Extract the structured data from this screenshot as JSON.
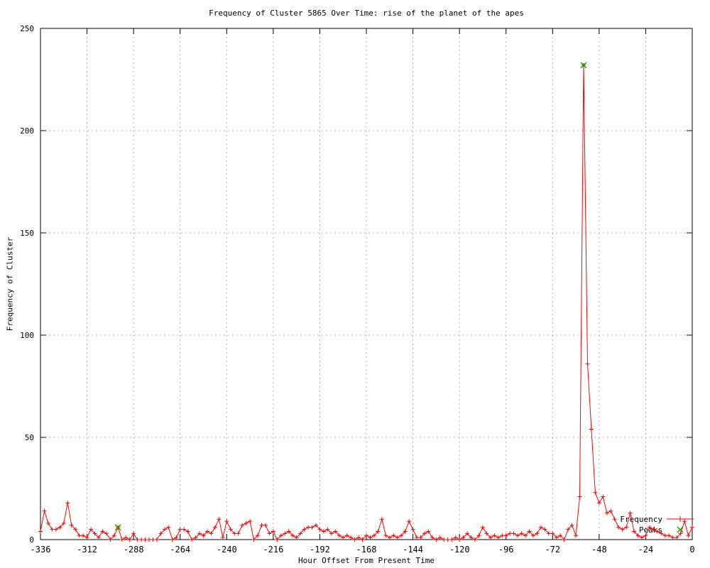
{
  "chart_data": {
    "type": "line",
    "title": "Frequency of Cluster 5865 Over Time: rise of the planet of the apes",
    "xlabel": "Hour Offset From Present Time",
    "ylabel": "Frequency of Cluster",
    "xlim": [
      -336,
      0
    ],
    "ylim": [
      0,
      250
    ],
    "xticks": [
      -336,
      -312,
      -288,
      -264,
      -240,
      -216,
      -192,
      -168,
      -144,
      -120,
      -96,
      -72,
      -48,
      -24,
      0
    ],
    "yticks": [
      0,
      50,
      100,
      150,
      200,
      250
    ],
    "grid": true,
    "legend_position": "bottom-right",
    "background_color": "#ffffff",
    "grid_color": "#b3b3b3",
    "border_color": "#000000",
    "series": [
      {
        "name": "Frequency",
        "color": "#ff0000",
        "marker": "plus",
        "x_start": -336,
        "x_step": 2,
        "values": [
          4,
          14,
          8,
          5,
          5,
          6,
          8,
          18,
          7,
          5,
          2,
          2,
          1,
          5,
          3,
          1,
          4,
          3,
          0,
          2,
          6,
          0,
          1,
          0,
          3,
          0,
          0,
          0,
          0,
          0,
          0,
          3,
          5,
          6,
          0,
          1,
          5,
          5,
          4,
          0,
          1,
          3,
          2,
          4,
          3,
          6,
          10,
          1,
          9,
          5,
          3,
          3,
          7,
          8,
          9,
          0,
          2,
          7,
          7,
          3,
          4,
          0,
          2,
          3,
          4,
          2,
          1,
          3,
          5,
          6,
          6,
          7,
          5,
          4,
          5,
          3,
          4,
          2,
          1,
          2,
          1,
          0,
          1,
          0,
          2,
          1,
          2,
          4,
          10,
          2,
          1,
          2,
          1,
          2,
          4,
          9,
          5,
          1,
          1,
          3,
          4,
          1,
          0,
          1,
          0,
          0,
          0,
          1,
          0,
          1,
          3,
          1,
          0,
          2,
          6,
          3,
          1,
          2,
          1,
          2,
          2,
          3,
          3,
          2,
          3,
          2,
          4,
          2,
          3,
          6,
          5,
          3,
          3,
          1,
          2,
          0,
          5,
          7,
          2,
          21,
          232,
          86,
          54,
          23,
          18,
          21,
          13,
          14,
          10,
          6,
          5,
          6,
          13,
          4,
          2,
          1,
          2,
          6,
          5,
          4,
          3,
          2,
          2,
          1,
          1,
          3,
          9,
          2,
          6
        ]
      },
      {
        "name": "Peaks",
        "color": "#00aa00",
        "marker": "x",
        "points": [
          {
            "x": -296,
            "y": 6
          },
          {
            "x": -56,
            "y": 232
          }
        ]
      }
    ]
  }
}
